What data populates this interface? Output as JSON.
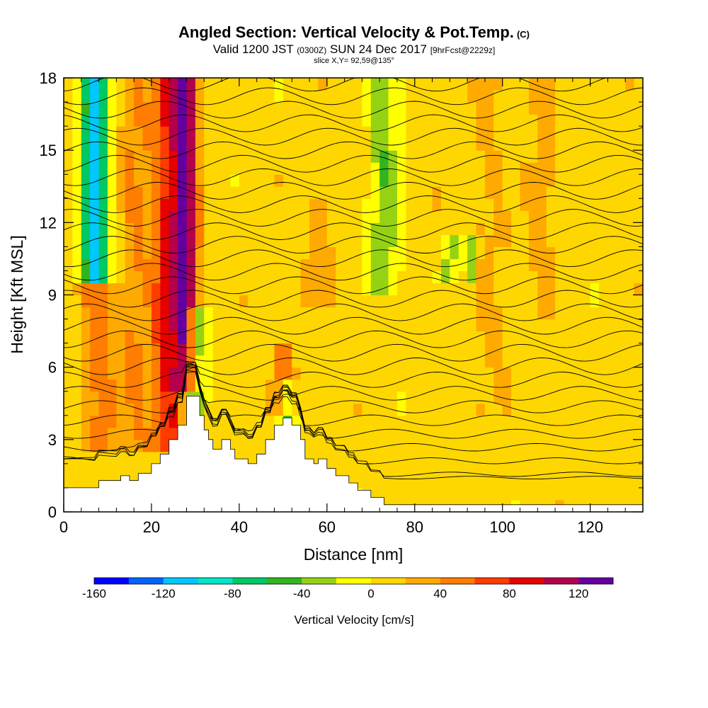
{
  "header": {
    "title": "Angled Section: Vertical Velocity & Pot.Temp.",
    "title_suffix": "(C)",
    "valid_prefix": "Valid 1200 JST",
    "valid_zulu": "(0300Z)",
    "valid_date": "SUN 24 Dec 2017",
    "forecast": "[9hrFcst@2229z]",
    "slice": "slice X,Y= 92,59@135°"
  },
  "chart_data": {
    "type": "heatmap",
    "xlabel": "Distance [nm]",
    "ylabel": "Height [Kft MSL]",
    "xlim": [
      0,
      132
    ],
    "ylim": [
      0,
      18
    ],
    "x_ticks": [
      0,
      20,
      40,
      60,
      80,
      100,
      120
    ],
    "y_ticks": [
      0,
      3,
      6,
      9,
      12,
      15,
      18
    ],
    "colorbar": {
      "title": "Vertical Velocity [cm/s]",
      "range": [
        -160,
        140
      ],
      "step": 20,
      "tick_labels": [
        -160,
        -120,
        -80,
        -40,
        0,
        40,
        80,
        120
      ],
      "colors": [
        "#0000ff",
        "#0064ff",
        "#00c8ff",
        "#00e6c8",
        "#00c864",
        "#32b41e",
        "#96d214",
        "#ffff00",
        "#ffd700",
        "#ffaa00",
        "#ff7d00",
        "#ff3c00",
        "#e60000",
        "#b4004b",
        "#6400a0"
      ]
    },
    "terrain_profile": [
      [
        0,
        1
      ],
      [
        8,
        1
      ],
      [
        8,
        1.3
      ],
      [
        13,
        1.3
      ],
      [
        13,
        1.5
      ],
      [
        15,
        1.5
      ],
      [
        15,
        1.3
      ],
      [
        17,
        1.3
      ],
      [
        17,
        1.6
      ],
      [
        20,
        1.6
      ],
      [
        20,
        2
      ],
      [
        22,
        2
      ],
      [
        22,
        2.4
      ],
      [
        24,
        2.4
      ],
      [
        24,
        3
      ],
      [
        26,
        3
      ],
      [
        26,
        3.6
      ],
      [
        28,
        3.6
      ],
      [
        28,
        4.8
      ],
      [
        31,
        4.8
      ],
      [
        31,
        4
      ],
      [
        32,
        4
      ],
      [
        32,
        3.4
      ],
      [
        33,
        3.4
      ],
      [
        33,
        3
      ],
      [
        34,
        3
      ],
      [
        34,
        2.6
      ],
      [
        36,
        2.6
      ],
      [
        36,
        3
      ],
      [
        38,
        3
      ],
      [
        38,
        2.6
      ],
      [
        39,
        2.6
      ],
      [
        39,
        2.2
      ],
      [
        42,
        2.2
      ],
      [
        42,
        2
      ],
      [
        44,
        2
      ],
      [
        44,
        2.4
      ],
      [
        46,
        2.4
      ],
      [
        46,
        3
      ],
      [
        48,
        3
      ],
      [
        48,
        3.6
      ],
      [
        50,
        3.6
      ],
      [
        50,
        3.9
      ],
      [
        52,
        3.9
      ],
      [
        52,
        3.6
      ],
      [
        54,
        3.6
      ],
      [
        54,
        3
      ],
      [
        55,
        3
      ],
      [
        55,
        2.2
      ],
      [
        57,
        2.2
      ],
      [
        57,
        2
      ],
      [
        58,
        2
      ],
      [
        58,
        2.2
      ],
      [
        60,
        2.2
      ],
      [
        60,
        1.8
      ],
      [
        62,
        1.8
      ],
      [
        62,
        1.5
      ],
      [
        65,
        1.5
      ],
      [
        65,
        1.2
      ],
      [
        67,
        1.2
      ],
      [
        67,
        0.9
      ],
      [
        70,
        0.9
      ],
      [
        70,
        0.6
      ],
      [
        73,
        0.6
      ],
      [
        73,
        0.3
      ],
      [
        132,
        0.3
      ]
    ],
    "vertical_velocity_features": [
      {
        "x": 7,
        "y0": 9.5,
        "y1": 18,
        "width": 3,
        "value": -110
      },
      {
        "x": 8,
        "y0": 2.5,
        "y1": 9.5,
        "width": 4,
        "value": 50
      },
      {
        "x": 16,
        "y0": 2.5,
        "y1": 18,
        "width": 3,
        "value": 40
      },
      {
        "x": 24,
        "y0": 2.5,
        "y1": 18,
        "width": 4,
        "value": 85
      },
      {
        "x": 28,
        "y0": 4.8,
        "y1": 18,
        "width": 2.5,
        "value": 110
      },
      {
        "x": 30,
        "y0": 3,
        "y1": 8.5,
        "width": 2.5,
        "value": -60
      },
      {
        "x": 50,
        "y0": 3.8,
        "y1": 7,
        "width": 2.5,
        "value": 55
      },
      {
        "x": 51,
        "y0": 3.6,
        "y1": 5.5,
        "width": 2,
        "value": -50
      },
      {
        "x": 58,
        "y0": 8.5,
        "y1": 13,
        "width": 3,
        "value": 35
      },
      {
        "x": 73,
        "y0": 9,
        "y1": 18,
        "width": 3.5,
        "value": -35
      },
      {
        "x": 88,
        "y0": 9.5,
        "y1": 11.5,
        "width": 1.5,
        "value": -40
      },
      {
        "x": 93,
        "y0": 9.7,
        "y1": 11.5,
        "width": 1.5,
        "value": -40
      },
      {
        "x": 97,
        "y0": 4,
        "y1": 18,
        "width": 4,
        "value": 25
      },
      {
        "x": 109,
        "y0": 8,
        "y1": 18,
        "width": 3,
        "value": 30
      }
    ]
  }
}
